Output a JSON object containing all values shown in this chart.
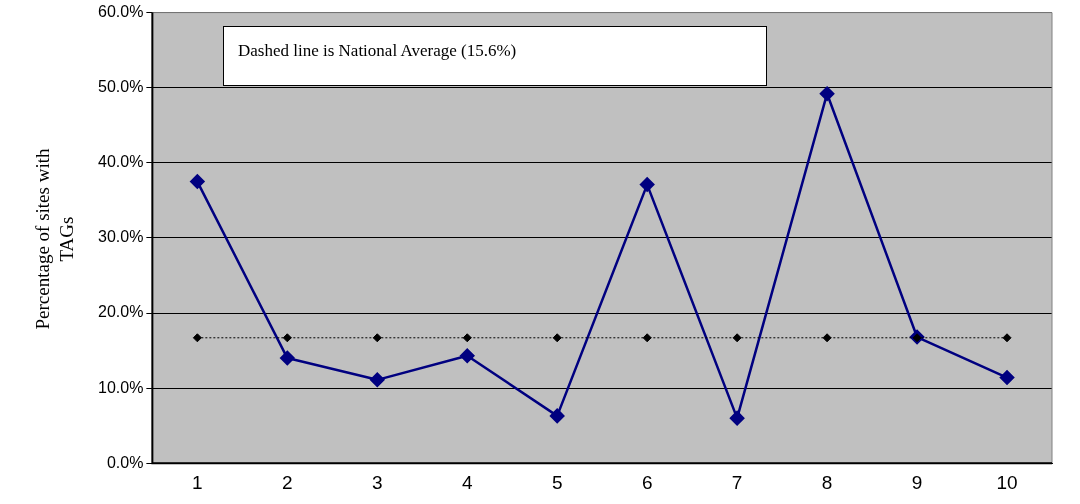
{
  "chart_data": {
    "type": "line",
    "ylabel": "Percentage of sites with TAGs",
    "categories": [
      "1",
      "2",
      "3",
      "4",
      "5",
      "6",
      "7",
      "8",
      "9",
      "10"
    ],
    "series": [
      {
        "color": "#000080",
        "values": [
          37.5,
          14.0,
          11.1,
          14.3,
          6.3,
          37.1,
          6.0,
          49.2,
          16.8,
          11.4
        ],
        "marker": "diamond",
        "line_style": "solid"
      },
      {
        "color": "#000000",
        "values": [
          16.7,
          16.7,
          16.7,
          16.7,
          16.7,
          16.7,
          16.7,
          16.7,
          16.7,
          16.7
        ],
        "marker": "diamond",
        "line_style": "dotted"
      }
    ],
    "ylim": [
      0,
      60
    ],
    "yticks": [
      {
        "value": 0,
        "label": "0.0%"
      },
      {
        "value": 10,
        "label": "10.0%"
      },
      {
        "value": 20,
        "label": "20.0%"
      },
      {
        "value": 30,
        "label": "30.0%"
      },
      {
        "value": 40,
        "label": "40.0%"
      },
      {
        "value": 50,
        "label": "50.0%"
      },
      {
        "value": 60,
        "label": "60.0%"
      }
    ],
    "grid": "y",
    "legend": false,
    "annotations": [
      "Dashed line is National Average (15.6%)"
    ]
  }
}
